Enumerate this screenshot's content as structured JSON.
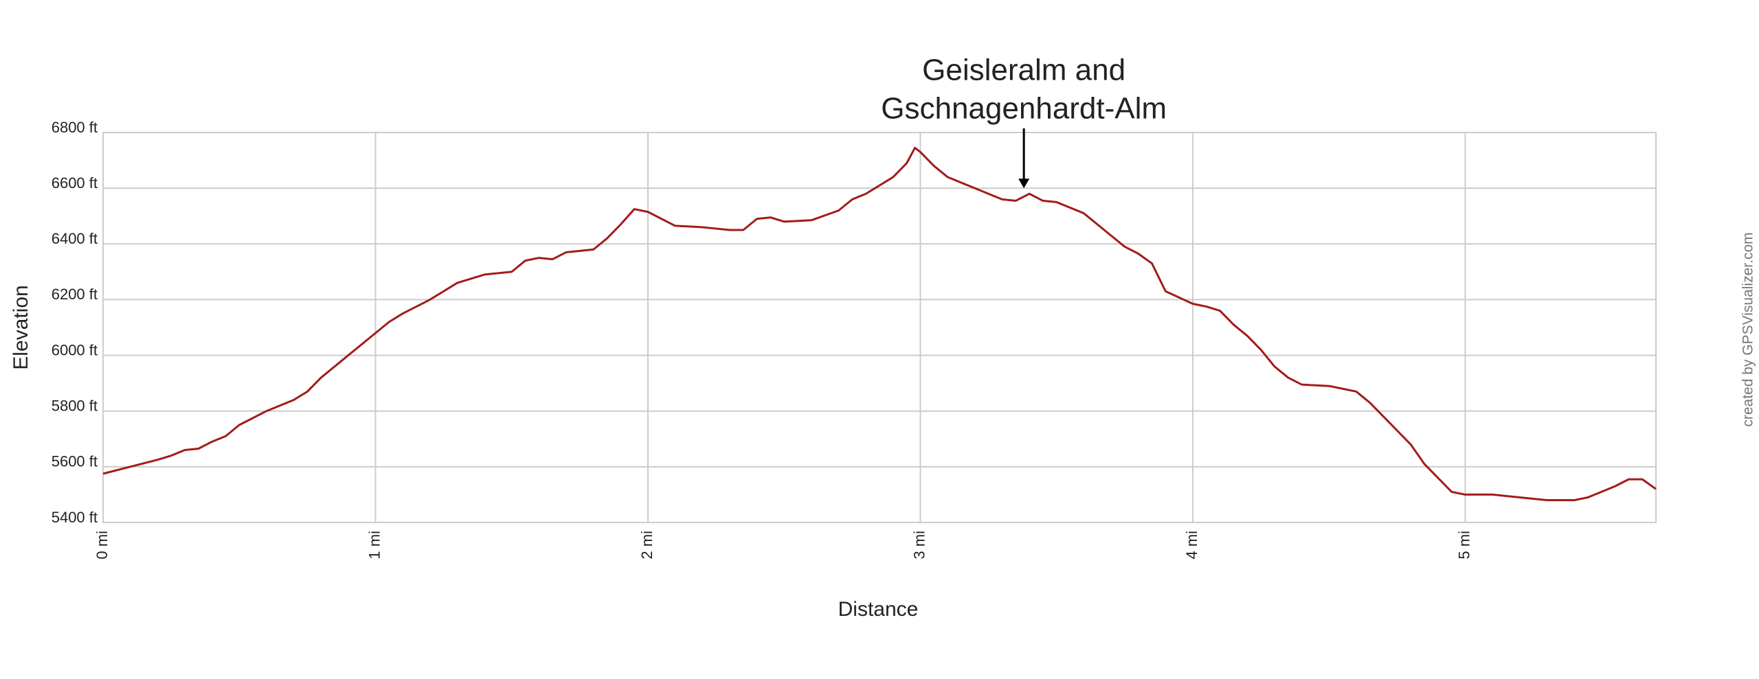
{
  "chart_data": {
    "type": "line",
    "x_label": "Distance",
    "y_label": "Elevation",
    "credit": "created by GPSVisualizer.com",
    "annotations": [
      {
        "text": [
          "Geisleralm and",
          "Gschnagenhardt-Alm"
        ],
        "x": 3.38,
        "y": 6580
      }
    ],
    "xlim": [
      0,
      5.7
    ],
    "ylim": [
      5400,
      6800
    ],
    "xticks": [
      {
        "value": 0,
        "label": "0 mi"
      },
      {
        "value": 1,
        "label": "1 mi"
      },
      {
        "value": 2,
        "label": "2 mi"
      },
      {
        "value": 3,
        "label": "3 mi"
      },
      {
        "value": 4,
        "label": "4 mi"
      },
      {
        "value": 5,
        "label": "5 mi"
      }
    ],
    "yticks": [
      {
        "value": 5400,
        "label": "5400 ft"
      },
      {
        "value": 5600,
        "label": "5600 ft"
      },
      {
        "value": 5800,
        "label": "5800 ft"
      },
      {
        "value": 6000,
        "label": "6000 ft"
      },
      {
        "value": 6200,
        "label": "6200 ft"
      },
      {
        "value": 6400,
        "label": "6400 ft"
      },
      {
        "value": 6600,
        "label": "6600 ft"
      },
      {
        "value": 6800,
        "label": "6800 ft"
      }
    ],
    "grid": true,
    "x": [
      0,
      0.1,
      0.2,
      0.25,
      0.3,
      0.35,
      0.4,
      0.45,
      0.5,
      0.55,
      0.6,
      0.7,
      0.75,
      0.8,
      0.9,
      1.0,
      1.05,
      1.1,
      1.2,
      1.3,
      1.4,
      1.5,
      1.55,
      1.6,
      1.65,
      1.7,
      1.8,
      1.85,
      1.9,
      1.95,
      2.0,
      2.1,
      2.2,
      2.3,
      2.35,
      2.4,
      2.45,
      2.5,
      2.6,
      2.7,
      2.75,
      2.8,
      2.9,
      2.95,
      2.98,
      3.0,
      3.05,
      3.1,
      3.2,
      3.3,
      3.35,
      3.4,
      3.45,
      3.5,
      3.6,
      3.7,
      3.75,
      3.8,
      3.85,
      3.9,
      4.0,
      4.05,
      4.1,
      4.15,
      4.2,
      4.25,
      4.3,
      4.35,
      4.4,
      4.5,
      4.55,
      4.6,
      4.65,
      4.7,
      4.75,
      4.8,
      4.85,
      4.9,
      4.95,
      5.0,
      5.1,
      5.2,
      5.3,
      5.4,
      5.45,
      5.5,
      5.55,
      5.6,
      5.65,
      5.7
    ],
    "series": [
      {
        "name": "Elevation",
        "color": "#a31b1b",
        "values": [
          5575,
          5600,
          5625,
          5640,
          5660,
          5665,
          5690,
          5710,
          5750,
          5775,
          5800,
          5840,
          5870,
          5920,
          6000,
          6080,
          6120,
          6150,
          6200,
          6260,
          6290,
          6300,
          6340,
          6350,
          6345,
          6370,
          6380,
          6420,
          6470,
          6525,
          6515,
          6465,
          6460,
          6450,
          6450,
          6490,
          6495,
          6480,
          6485,
          6520,
          6560,
          6580,
          6640,
          6690,
          6745,
          6730,
          6680,
          6640,
          6600,
          6560,
          6555,
          6580,
          6555,
          6550,
          6510,
          6430,
          6390,
          6365,
          6330,
          6230,
          6185,
          6175,
          6160,
          6110,
          6070,
          6020,
          5960,
          5920,
          5895,
          5890,
          5880,
          5870,
          5830,
          5780,
          5730,
          5680,
          5610,
          5560,
          5510,
          5500,
          5500,
          5490,
          5480,
          5480,
          5490,
          5510,
          5530,
          5555,
          5555,
          5520
        ]
      }
    ]
  }
}
